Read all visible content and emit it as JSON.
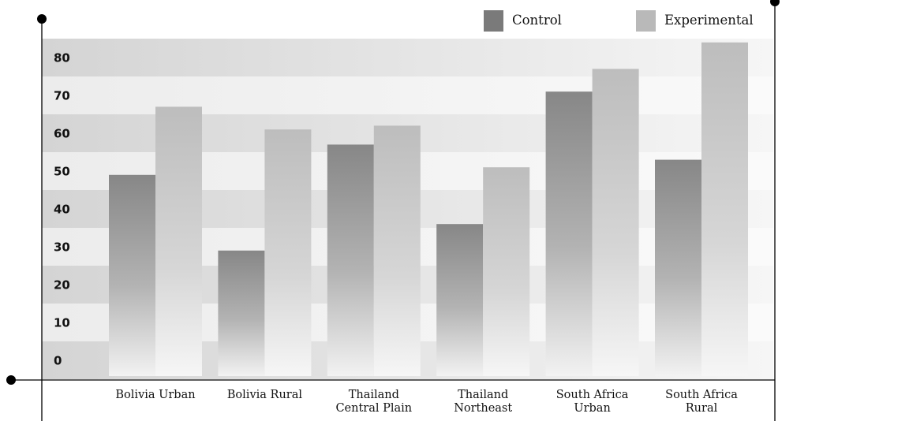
{
  "chart_data": {
    "type": "bar",
    "categories": [
      [
        "Bolivia Urban"
      ],
      [
        "Bolivia Rural"
      ],
      [
        "Thailand",
        "Central Plain"
      ],
      [
        "Thailand",
        "Northeast"
      ],
      [
        "South Africa",
        "Urban"
      ],
      [
        "South Africa",
        "Rural"
      ]
    ],
    "series": [
      {
        "name": "Control",
        "values": [
          49,
          29,
          57,
          36,
          71,
          53
        ],
        "color": "#7a7a7a"
      },
      {
        "name": "Experimental",
        "values": [
          67,
          61,
          62,
          51,
          77,
          84
        ],
        "color": "#b9b9b9"
      }
    ],
    "ylim": [
      0,
      80
    ],
    "y_ticks": [
      0,
      10,
      20,
      30,
      40,
      50,
      60,
      70,
      80
    ],
    "legend": "top-right",
    "grid": "alternating horizontal bands"
  }
}
